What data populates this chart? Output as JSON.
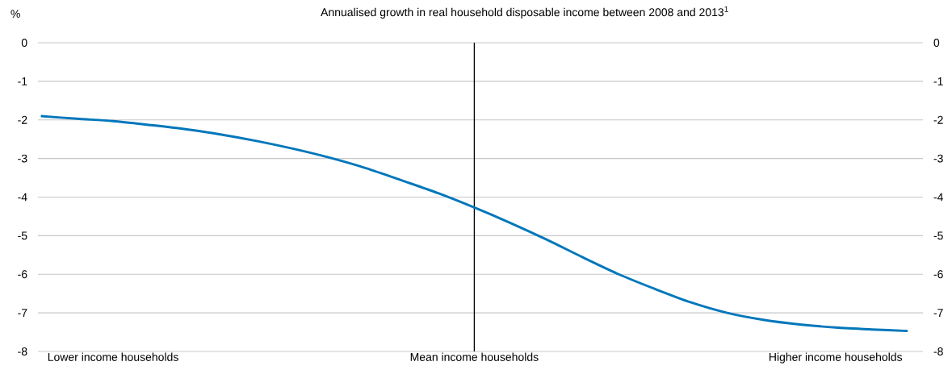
{
  "chart_data": {
    "type": "line",
    "title": "Annualised growth in real household disposable income between 2008 and 2013$^{1}$",
    "ylabel": "%",
    "categories": [
      null,
      null,
      "Lower income households",
      null,
      null,
      null,
      null,
      null,
      null,
      null,
      null,
      null,
      "Mean income households",
      null,
      null,
      null,
      null,
      null,
      null,
      null,
      null,
      null,
      "Higher income households",
      null,
      null
    ],
    "series": [
      {
        "color": "#0077bb",
        "values": [
          -1.9,
          -1.97,
          -2.03,
          -2.13,
          -2.24,
          -2.38,
          -2.55,
          -2.75,
          -2.98,
          -3.25,
          -3.57,
          -3.9,
          -4.27,
          -4.67,
          -5.1,
          -5.56,
          -6.0,
          -6.38,
          -6.73,
          -7.0,
          -7.18,
          -7.3,
          -7.38,
          -7.43,
          -7.47
        ]
      }
    ],
    "ylim": [
      -8,
      0
    ],
    "yticks": [
      -8,
      -7,
      -6,
      -5,
      -4,
      -3,
      -2,
      -1,
      0
    ],
    "y2lim": [
      -8,
      0
    ],
    "y2ticks": [
      -8,
      -7,
      -6,
      -5,
      -4,
      -3,
      -2,
      -1,
      0
    ],
    "ref_lines": [
      {
        "axis": "x",
        "value": "Mean income households",
        "color": "#000000"
      }
    ],
    "grid": "y",
    "marker": "none",
    "line_style": "solid"
  }
}
